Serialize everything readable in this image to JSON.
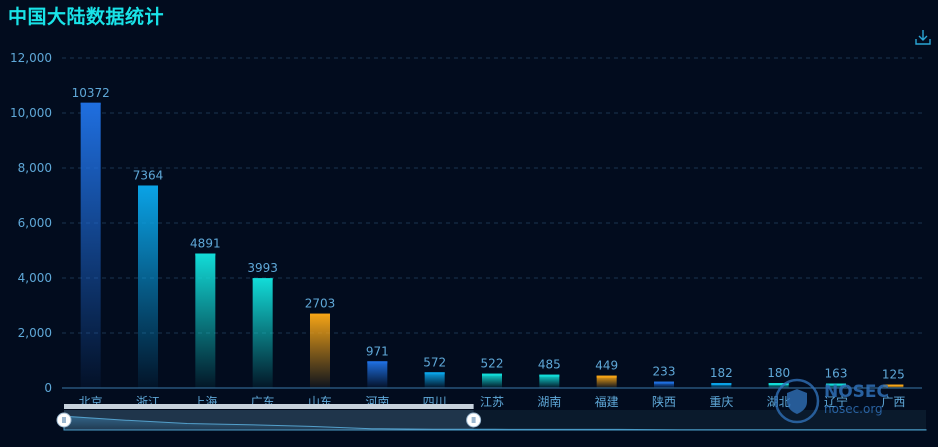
{
  "title": "中国大陆数据统计",
  "toolbar": {
    "download_icon": "download-icon"
  },
  "watermark": {
    "brand": "NOSEC",
    "domain": "nosec.org",
    "icon": "shield-logo-icon"
  },
  "colors": {
    "background": "#020c1e",
    "title": "#19e3e8",
    "axis_text": "#5fa8d8",
    "bar_palette": [
      "#1f6fe0",
      "#0aa3e6",
      "#12dcd8",
      "#12dcd8",
      "#f5a416"
    ]
  },
  "chart_data": {
    "type": "bar",
    "title": "中国大陆数据统计",
    "categories": [
      "北京",
      "浙江",
      "上海",
      "广东",
      "山东",
      "河南",
      "四川",
      "江苏",
      "湖南",
      "福建",
      "陕西",
      "重庆",
      "湖北",
      "辽宁",
      "广西"
    ],
    "values": [
      10372,
      7364,
      4891,
      3993,
      2703,
      971,
      572,
      522,
      485,
      449,
      233,
      182,
      180,
      163,
      125
    ],
    "ylim": [
      0,
      12000
    ],
    "yticks": [
      "0",
      "2,000",
      "4,000",
      "6,000",
      "8,000",
      "10,000",
      "12,000"
    ],
    "ytick_values": [
      0,
      2000,
      4000,
      6000,
      8000,
      10000,
      12000
    ],
    "grid": true,
    "data_labels": true,
    "xlabel": "",
    "ylabel": "",
    "datazoom": {
      "start_fraction": 0.0,
      "end_fraction": 0.51
    }
  }
}
